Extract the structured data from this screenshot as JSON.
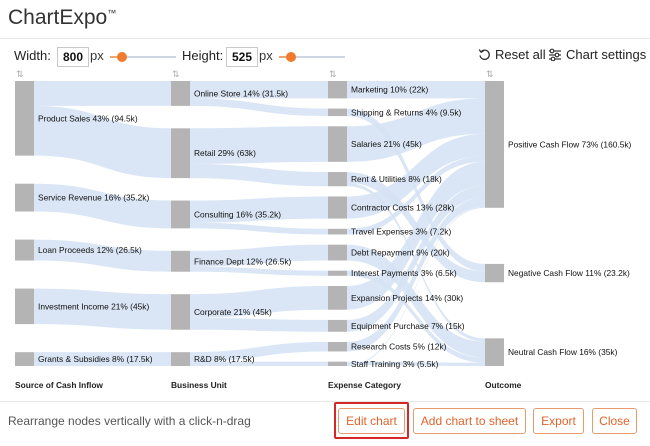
{
  "app": {
    "logo_text": "ChartExpo",
    "logo_mark": "™"
  },
  "toolbar": {
    "width_label": "Width:",
    "width_value": "800",
    "width_unit": "px",
    "width_fraction": 0.18,
    "height_label": "Height:",
    "height_value": "525",
    "height_unit": "px",
    "height_fraction": 0.18,
    "reset_label": "Reset all",
    "settings_label": "Chart settings"
  },
  "chart_data": {
    "type": "sankey",
    "colors": {
      "node": "#b4b4b4",
      "link": "#d3e2f3",
      "label": "#111111"
    },
    "columns": [
      {
        "title": "Source of Cash Inflow",
        "nodes": [
          {
            "label": "Product Sales 43% (94.5k)",
            "value": 94.5
          },
          {
            "label": "Service Revenue 16% (35.2k)",
            "value": 35.2
          },
          {
            "label": "Loan Proceeds 12% (26.5k)",
            "value": 26.5
          },
          {
            "label": "Investment Income 21% (45k)",
            "value": 45
          },
          {
            "label": "Grants & Subsidies 8% (17.5k)",
            "value": 17.5
          }
        ]
      },
      {
        "title": "Business Unit",
        "nodes": [
          {
            "label": "Online Store 14% (31.5k)",
            "value": 31.5
          },
          {
            "label": "Retail 29% (63k)",
            "value": 63
          },
          {
            "label": "Consulting 16% (35.2k)",
            "value": 35.2
          },
          {
            "label": "Finance Dept 12% (26.5k)",
            "value": 26.5
          },
          {
            "label": "Corporate 21% (45k)",
            "value": 45
          },
          {
            "label": "R&D 8% (17.5k)",
            "value": 17.5
          }
        ]
      },
      {
        "title": "Expense Category",
        "nodes": [
          {
            "label": "Marketing 10% (22k)",
            "value": 22
          },
          {
            "label": "Shipping & Returns 4% (9.5k)",
            "value": 9.5
          },
          {
            "label": "Salaries 21% (45k)",
            "value": 45
          },
          {
            "label": "Rent & Utilities 8% (18k)",
            "value": 18
          },
          {
            "label": "Contractor Costs 13% (28k)",
            "value": 28
          },
          {
            "label": "Travel Expenses 3% (7.2k)",
            "value": 7.2
          },
          {
            "label": "Debt Repayment 9% (20k)",
            "value": 20
          },
          {
            "label": "Interest Payments 3% (6.5k)",
            "value": 6.5
          },
          {
            "label": "Expansion Projects 14% (30k)",
            "value": 30
          },
          {
            "label": "Equipment Purchase 7% (15k)",
            "value": 15
          },
          {
            "label": "Research Costs 5% (12k)",
            "value": 12
          },
          {
            "label": "Staff Training 3% (5.5k)",
            "value": 5.5
          }
        ]
      },
      {
        "title": "Outcome",
        "nodes": [
          {
            "label": "Positive Cash Flow 73% (160.5k)",
            "value": 160.5
          },
          {
            "label": "Negative Cash Flow 11% (23.2k)",
            "value": 23.2
          },
          {
            "label": "Neutral Cash Flow 16% (35k)",
            "value": 35
          }
        ]
      }
    ],
    "links": [
      {
        "from": [
          0,
          0
        ],
        "to": [
          1,
          0
        ],
        "value": 31.5
      },
      {
        "from": [
          0,
          0
        ],
        "to": [
          1,
          1
        ],
        "value": 63
      },
      {
        "from": [
          0,
          1
        ],
        "to": [
          1,
          2
        ],
        "value": 35.2
      },
      {
        "from": [
          0,
          2
        ],
        "to": [
          1,
          3
        ],
        "value": 26.5
      },
      {
        "from": [
          0,
          3
        ],
        "to": [
          1,
          4
        ],
        "value": 45
      },
      {
        "from": [
          0,
          4
        ],
        "to": [
          1,
          5
        ],
        "value": 17.5
      },
      {
        "from": [
          1,
          0
        ],
        "to": [
          2,
          0
        ],
        "value": 22
      },
      {
        "from": [
          1,
          0
        ],
        "to": [
          2,
          1
        ],
        "value": 9.5
      },
      {
        "from": [
          1,
          1
        ],
        "to": [
          2,
          2
        ],
        "value": 45
      },
      {
        "from": [
          1,
          1
        ],
        "to": [
          2,
          3
        ],
        "value": 18
      },
      {
        "from": [
          1,
          2
        ],
        "to": [
          2,
          4
        ],
        "value": 28
      },
      {
        "from": [
          1,
          2
        ],
        "to": [
          2,
          5
        ],
        "value": 7.2
      },
      {
        "from": [
          1,
          3
        ],
        "to": [
          2,
          6
        ],
        "value": 20
      },
      {
        "from": [
          1,
          3
        ],
        "to": [
          2,
          7
        ],
        "value": 6.5
      },
      {
        "from": [
          1,
          4
        ],
        "to": [
          2,
          8
        ],
        "value": 30
      },
      {
        "from": [
          1,
          4
        ],
        "to": [
          2,
          9
        ],
        "value": 15
      },
      {
        "from": [
          1,
          5
        ],
        "to": [
          2,
          10
        ],
        "value": 12
      },
      {
        "from": [
          1,
          5
        ],
        "to": [
          2,
          11
        ],
        "value": 5.5
      },
      {
        "from": [
          2,
          0
        ],
        "to": [
          3,
          0
        ],
        "value": 22
      },
      {
        "from": [
          2,
          1
        ],
        "to": [
          3,
          1
        ],
        "value": 9.5
      },
      {
        "from": [
          2,
          2
        ],
        "to": [
          3,
          0
        ],
        "value": 45
      },
      {
        "from": [
          2,
          3
        ],
        "to": [
          3,
          1
        ],
        "value": 13.7
      },
      {
        "from": [
          2,
          3
        ],
        "to": [
          3,
          2
        ],
        "value": 4.3
      },
      {
        "from": [
          2,
          4
        ],
        "to": [
          3,
          0
        ],
        "value": 28
      },
      {
        "from": [
          2,
          5
        ],
        "to": [
          3,
          0
        ],
        "value": 7.2
      },
      {
        "from": [
          2,
          6
        ],
        "to": [
          3,
          2
        ],
        "value": 20
      },
      {
        "from": [
          2,
          7
        ],
        "to": [
          3,
          2
        ],
        "value": 6.5
      },
      {
        "from": [
          2,
          8
        ],
        "to": [
          3,
          0
        ],
        "value": 30
      },
      {
        "from": [
          2,
          9
        ],
        "to": [
          3,
          0
        ],
        "value": 15
      },
      {
        "from": [
          2,
          10
        ],
        "to": [
          3,
          0
        ],
        "value": 12
      },
      {
        "from": [
          2,
          11
        ],
        "to": [
          3,
          2
        ],
        "value": 4.2
      },
      {
        "from": [
          2,
          11
        ],
        "to": [
          3,
          0
        ],
        "value": 1.3
      }
    ]
  },
  "footer": {
    "hint": "Rearrange nodes vertically with a click-n-drag",
    "edit_chart": "Edit chart",
    "add_to_sheet": "Add chart to sheet",
    "export": "Export",
    "close": "Close"
  }
}
